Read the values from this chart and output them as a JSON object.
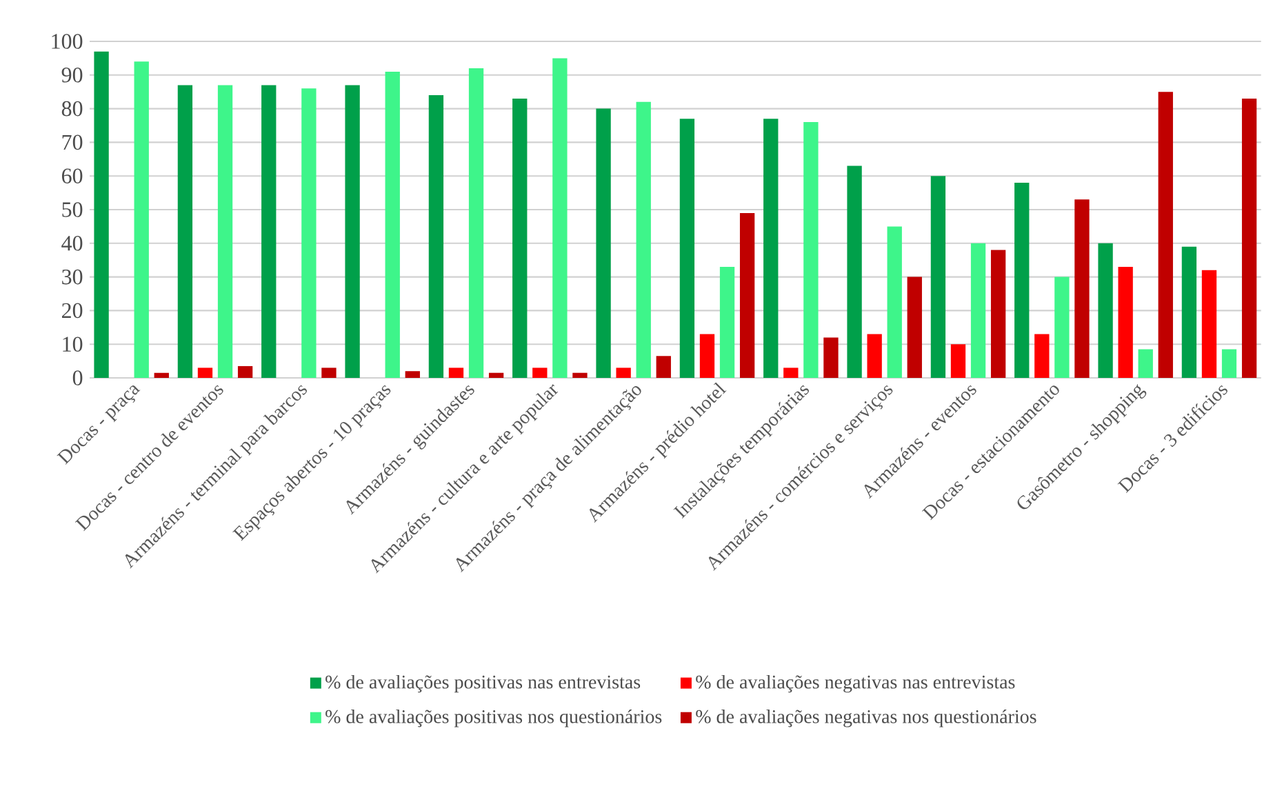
{
  "chart_data": {
    "type": "bar",
    "categories": [
      "Docas - praça",
      "Docas - centro de eventos",
      "Armazéns - terminal para barcos",
      "Espaços abertos - 10 praças",
      "Armazéns - guindastes",
      "Armazéns - cultura e arte popular",
      "Armazéns - praça de alimentação",
      "Armazéns - prédio hotel",
      "Instalações temporárias",
      "Armazéns - comércios e serviços",
      "Armazéns - eventos",
      "Docas - estacionamento",
      "Gasômetro - shopping",
      "Docas - 3 edifícios"
    ],
    "series": [
      {
        "name": "% de avaliações positivas nas entrevistas",
        "color": "#00a04a",
        "values": [
          97,
          87,
          87,
          87,
          84,
          83,
          80,
          77,
          77,
          63,
          60,
          58,
          40,
          39
        ]
      },
      {
        "name": "% de avaliações negativas nas entrevistas",
        "color": "#ff0000",
        "values": [
          0,
          3,
          0,
          0,
          3,
          3,
          3,
          13,
          3,
          13,
          10,
          13,
          33,
          32
        ]
      },
      {
        "name": "% de avaliações positivas nos questionários",
        "color": "#3ef58a",
        "values": [
          94,
          87,
          86,
          91,
          92,
          95,
          82,
          33,
          76,
          45,
          40,
          30,
          8.5,
          8.5
        ]
      },
      {
        "name": "% de avaliações negativas nos questionários",
        "color": "#c00000",
        "values": [
          1.5,
          3.5,
          3,
          2,
          1.5,
          1.5,
          6.5,
          49,
          12,
          30,
          38,
          53,
          85,
          83
        ]
      }
    ],
    "ylim": [
      0,
      100
    ],
    "yticks": [
      0,
      10,
      20,
      30,
      40,
      50,
      60,
      70,
      80,
      90,
      100
    ],
    "grid": "y",
    "legend": "bottom"
  }
}
